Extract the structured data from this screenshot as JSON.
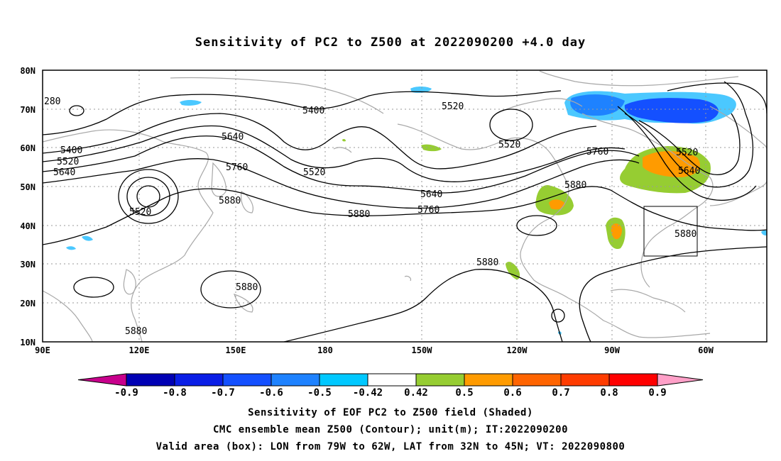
{
  "title": "Sensitivity of PC2 to Z500 at 2022090200 +4.0 day",
  "lat_labels": [
    "80N",
    "70N",
    "60N",
    "50N",
    "40N",
    "30N",
    "20N",
    "10N"
  ],
  "lon_labels": [
    "90E",
    "120E",
    "150E",
    "180",
    "150W",
    "120W",
    "90W",
    "60W"
  ],
  "contour_labels": [
    "280",
    "5400",
    "5520",
    "5400",
    "5520",
    "5640",
    "5640",
    "5760",
    "5520",
    "5520",
    "5520",
    "5640",
    "5760",
    "5880",
    "5880",
    "5880",
    "5760",
    "5880",
    "5520",
    "5640",
    "5880",
    "5880",
    "5880"
  ],
  "colorbar": {
    "labels": [
      "-0.9",
      "-0.8",
      "-0.7",
      "-0.6",
      "-0.5",
      "-0.42",
      "0.42",
      "0.5",
      "0.6",
      "0.7",
      "0.8",
      "0.9"
    ],
    "colors": [
      "#c8008c",
      "#0000b4",
      "#0a1ee6",
      "#1450ff",
      "#1e82ff",
      "#00c8ff",
      "#ffffff",
      "#96cd32",
      "#ff9b00",
      "#ff6400",
      "#ff3c00",
      "#ff0000",
      "#ffa0c8"
    ]
  },
  "shading_colors": {
    "light_blue": "#4bc8ff",
    "blue": "#1e82ff",
    "dark_blue": "#1450ff",
    "green": "#96cd32",
    "orange": "#ff9b00",
    "dark_orange": "#ff6400"
  },
  "captions": [
    "Sensitivity of EOF PC2 to Z500 field (Shaded)",
    "CMC ensemble mean Z500 (Contour); unit(m); IT:2022090200",
    "Valid area (box): LON from 79W to 62W, LAT from 32N to 45N; VT: 2022090800"
  ]
}
